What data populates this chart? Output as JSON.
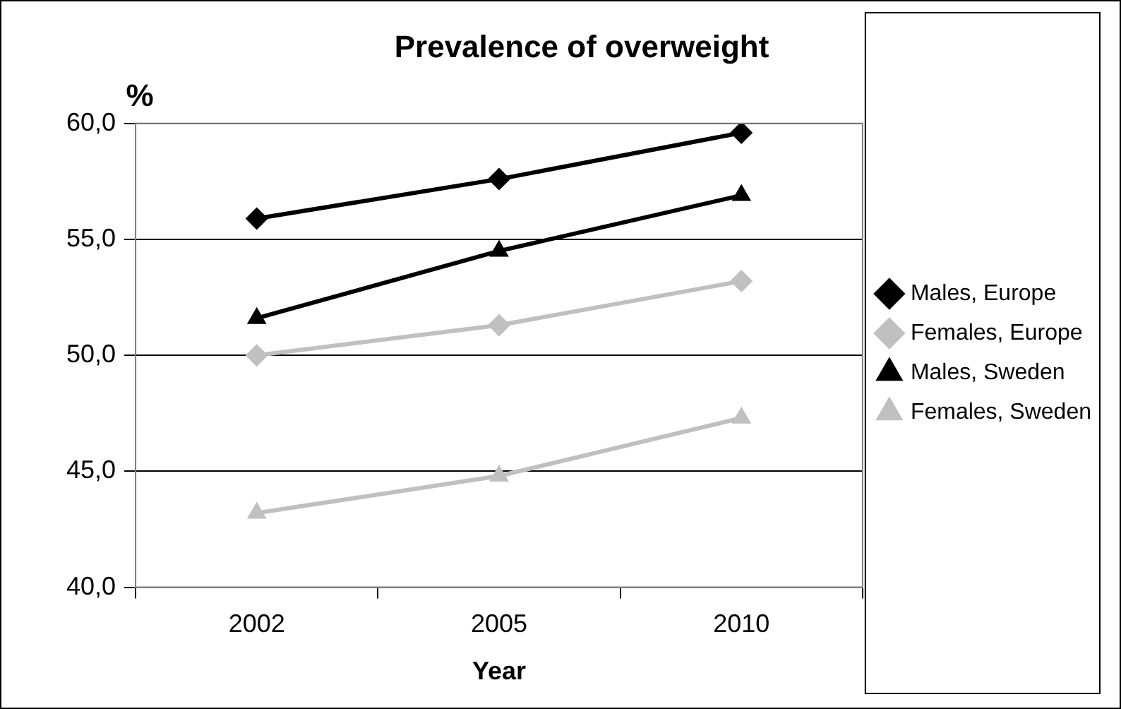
{
  "chart_data": {
    "type": "line",
    "title": "Prevalence of overweight",
    "xlabel": "Year",
    "ylabel": "%",
    "categories": [
      "2002",
      "2005",
      "2010"
    ],
    "series": [
      {
        "name": "Males, Europe",
        "color": "#000000",
        "marker": "diamond",
        "values": [
          55.9,
          57.6,
          59.6
        ]
      },
      {
        "name": "Females, Europe",
        "color": "#c0c0c0",
        "marker": "diamond",
        "values": [
          50.0,
          51.3,
          53.2
        ]
      },
      {
        "name": "Males, Sweden",
        "color": "#000000",
        "marker": "triangle",
        "values": [
          51.6,
          54.5,
          56.9
        ]
      },
      {
        "name": "Females, Sweden",
        "color": "#c0c0c0",
        "marker": "triangle",
        "values": [
          43.2,
          44.8,
          47.3
        ]
      }
    ],
    "ylim": [
      40,
      60
    ],
    "yticks": [
      {
        "value": 40,
        "label": "40,0"
      },
      {
        "value": 45,
        "label": "45,0"
      },
      {
        "value": 50,
        "label": "50,0"
      },
      {
        "value": 55,
        "label": "55,0"
      },
      {
        "value": 60,
        "label": "60,0"
      }
    ],
    "grid": "y",
    "legend": "right",
    "line_style": "solid"
  }
}
